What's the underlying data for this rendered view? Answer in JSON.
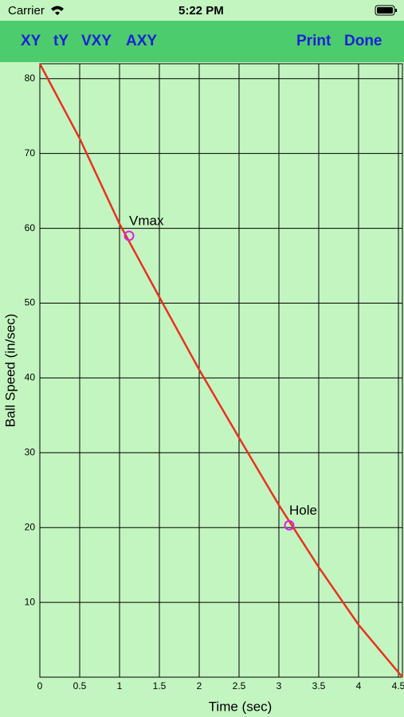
{
  "status_bar": {
    "carrier": "Carrier",
    "time": "5:22 PM"
  },
  "toolbar": {
    "left_buttons": [
      "XY",
      "tY",
      "VXY",
      "AXY"
    ],
    "right_buttons": [
      "Print",
      "Done"
    ]
  },
  "chart_data": {
    "type": "line",
    "xlabel": "Time (sec)",
    "ylabel": "Ball Speed (in/sec)",
    "x": [
      0,
      0.5,
      1,
      1.5,
      2,
      2.5,
      3,
      3.5,
      4,
      4.55
    ],
    "series": [
      {
        "name": "Ball Speed",
        "color": "#e8321e",
        "values": [
          82,
          72,
          60.6,
          50.8,
          41.1,
          32,
          23,
          14.7,
          7,
          0
        ]
      }
    ],
    "annotations": [
      {
        "text": "Vmax",
        "x": 1.12,
        "y": 59
      },
      {
        "text": "Hole",
        "x": 3.13,
        "y": 20.3
      }
    ],
    "marker_color": "#e020e0",
    "xlim": [
      0,
      4.55
    ],
    "ylim": [
      0,
      82
    ],
    "xticks": [
      0,
      0.5,
      1,
      1.5,
      2,
      2.5,
      3,
      3.5,
      4,
      4.5
    ],
    "yticks": [
      10,
      20,
      30,
      40,
      50,
      60,
      70,
      80
    ],
    "grid": true
  }
}
